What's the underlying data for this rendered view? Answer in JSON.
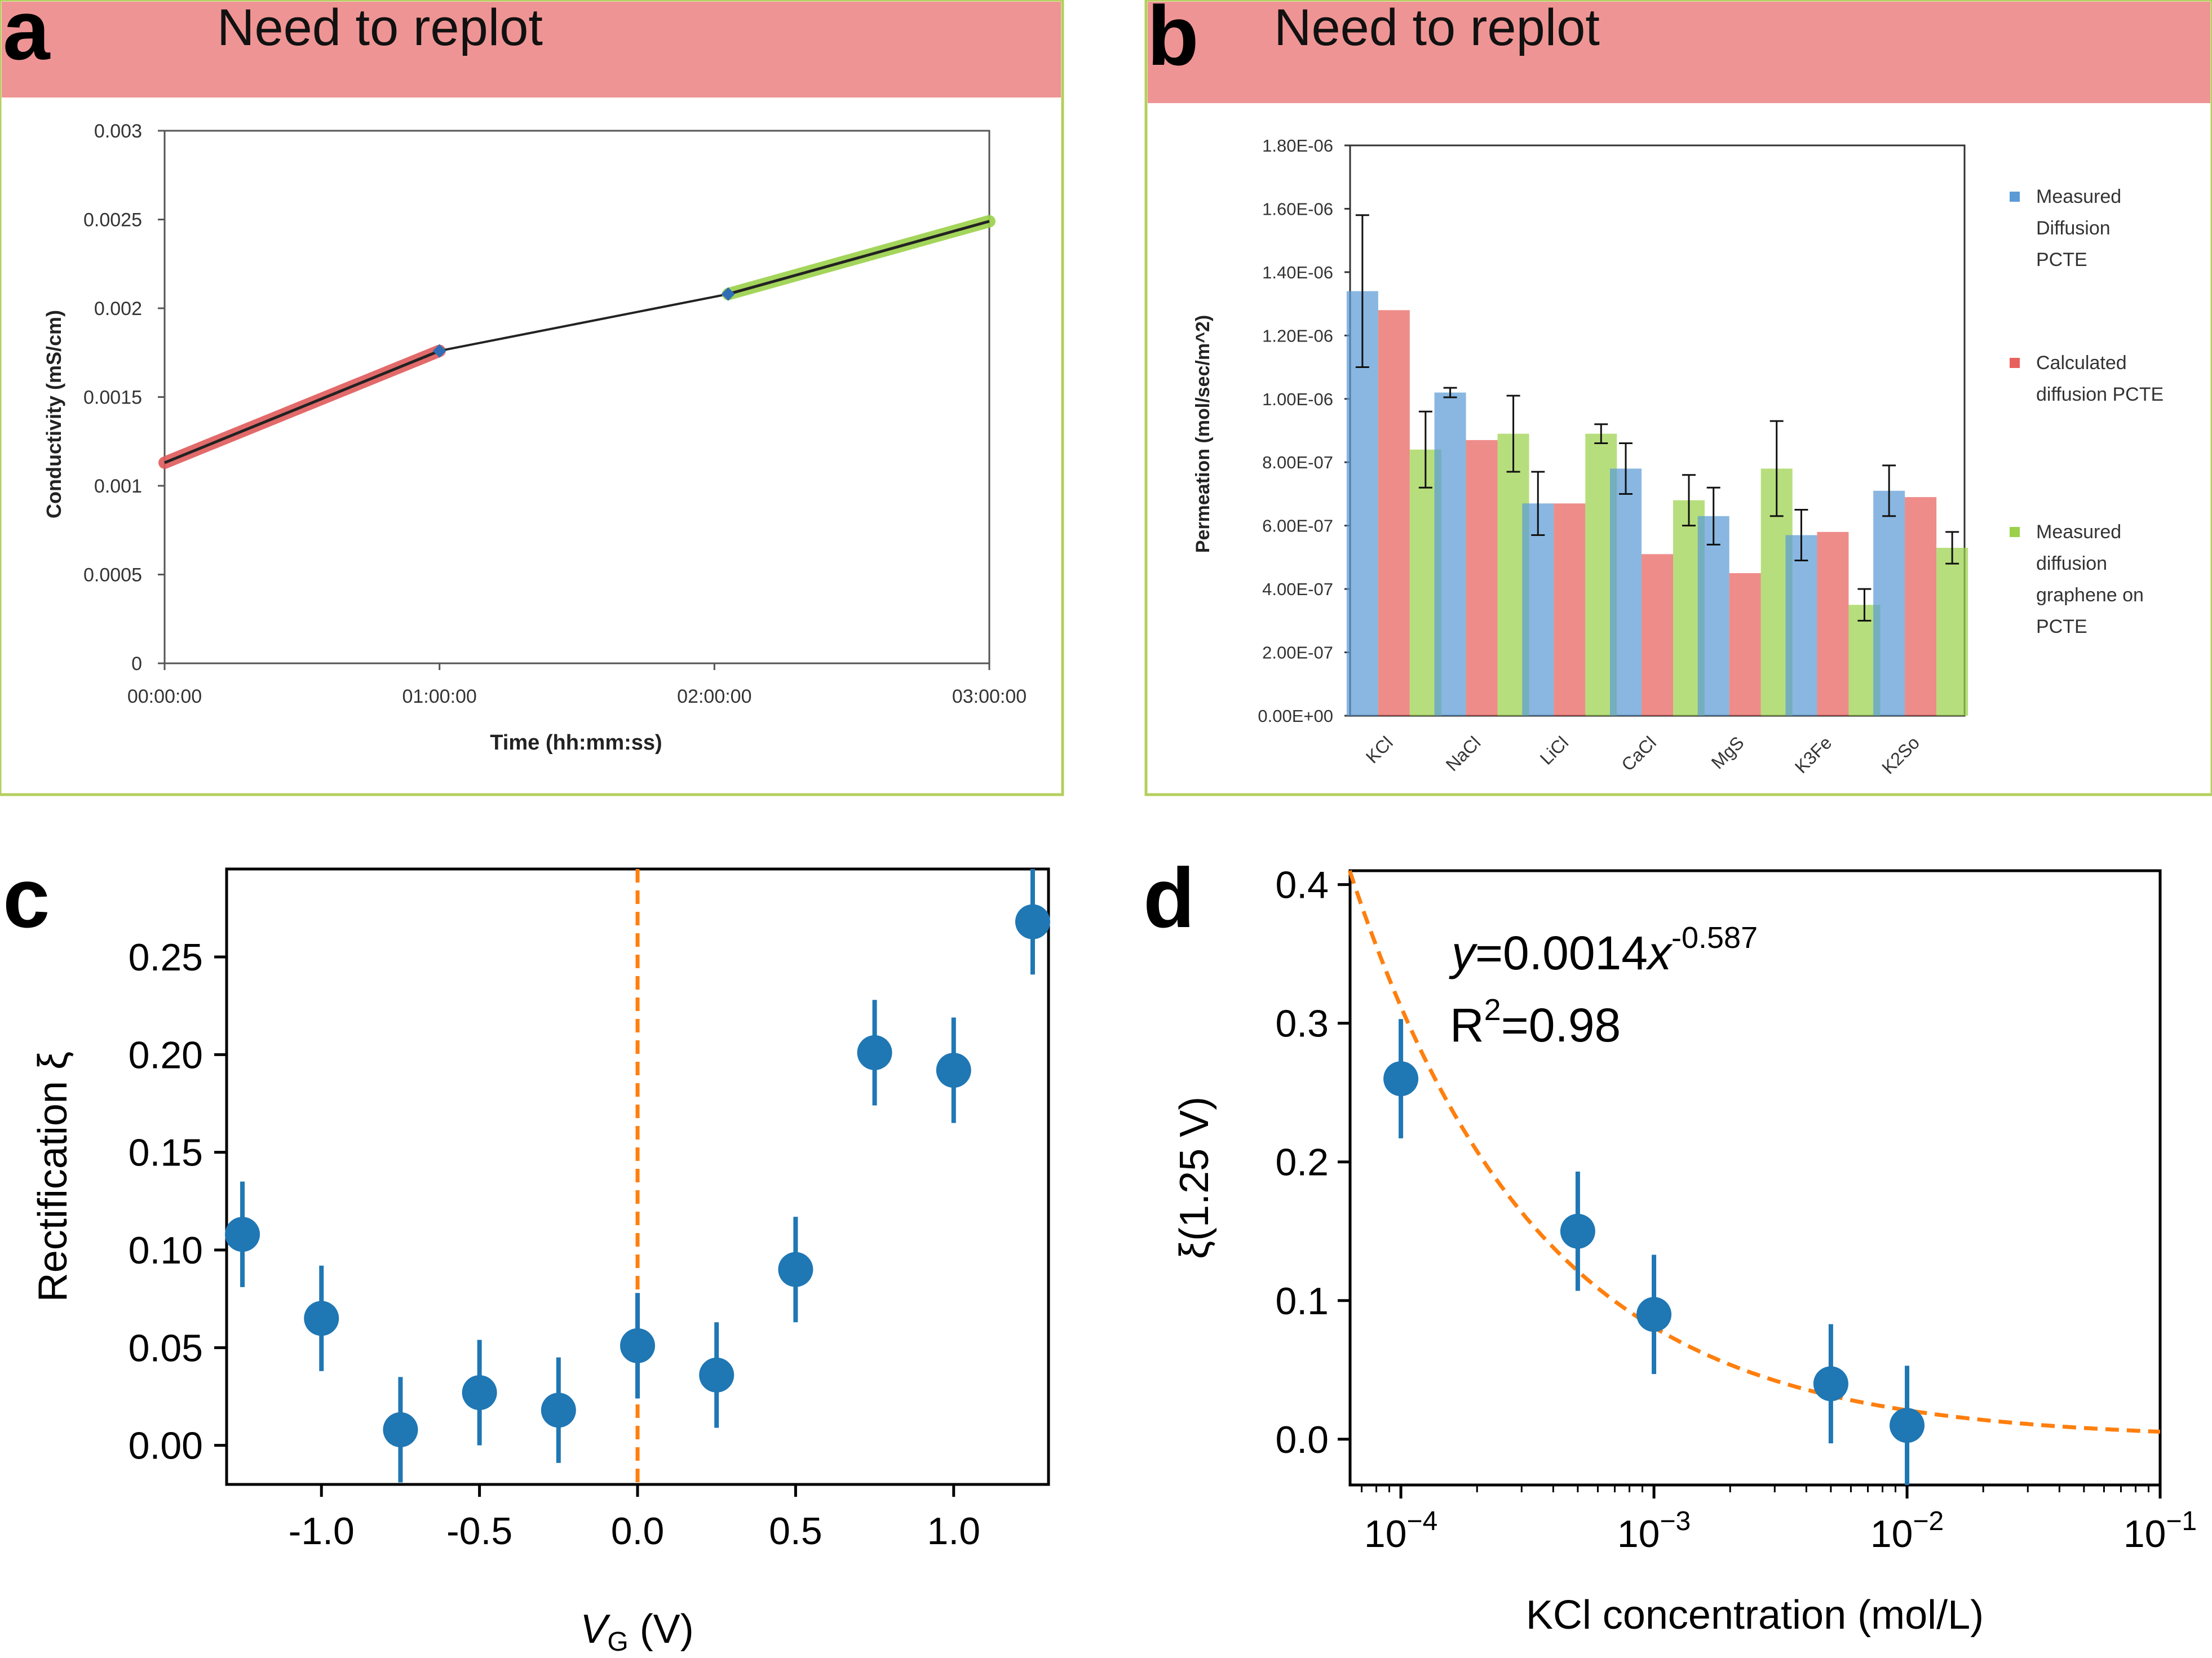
{
  "panels": {
    "a": {
      "letter": "a",
      "banner": "Need to replot",
      "chart_data": {
        "type": "line",
        "ylabel": "Conductivity (mS/cm)",
        "xlabel": "Time (hh:mm:ss)",
        "ylim": [
          0,
          0.003
        ],
        "yticks": [
          "0",
          "0.0005",
          "0.001",
          "0.0015",
          "0.002",
          "0.0025",
          "0.003"
        ],
        "xlim": [
          0,
          3
        ],
        "xticks": [
          "00:00:00",
          "01:00:00",
          "02:00:00",
          "03:00:00"
        ],
        "grid": false,
        "series": [
          {
            "color": "#e05a5a",
            "x": [
              0,
              1.0
            ],
            "y": [
              0.00113,
              0.00176
            ]
          },
          {
            "color": "#222222",
            "x": [
              1.0,
              2.05
            ],
            "y": [
              0.00176,
              0.00208
            ]
          },
          {
            "color": "#9bd14a",
            "x": [
              2.05,
              3.0
            ],
            "y": [
              0.00208,
              0.00249
            ]
          }
        ],
        "markers": [
          {
            "x": 1.0,
            "y": 0.00176
          },
          {
            "x": 2.05,
            "y": 0.00208
          }
        ]
      }
    },
    "b": {
      "letter": "b",
      "banner": "Need to replot",
      "chart_data": {
        "type": "bar",
        "ylabel": "Permeation (mol/sec/m^2)",
        "ylim": [
          0,
          1.8e-06
        ],
        "yticks": [
          "0.00E+00",
          "2.00E-07",
          "4.00E-07",
          "6.00E-07",
          "8.00E-07",
          "1.00E-06",
          "1.20E-06",
          "1.40E-06",
          "1.60E-06",
          "1.80E-06"
        ],
        "categories": [
          "KCl",
          "NaCl",
          "LiCl",
          "CaCl",
          "MgS",
          "K3Fe",
          "K2So"
        ],
        "legend_position": "right",
        "series": [
          {
            "name": "Measured Diffusion PCTE",
            "legend_lines": [
              "Measured",
              "Diffusion",
              "PCTE"
            ],
            "color": "#5b9bd5",
            "values": [
              1.34e-06,
              1.02e-06,
              6.7e-07,
              7.8e-07,
              6.3e-07,
              5.7e-07,
              7.1e-07
            ],
            "errors": [
              2.4e-07,
              1.5e-08,
              1e-07,
              8e-08,
              9e-08,
              8e-08,
              8e-08
            ]
          },
          {
            "name": "Calculated diffusion PCTE",
            "legend_lines": [
              "Calculated",
              "diffusion PCTE"
            ],
            "color": "#e8605c",
            "values": [
              1.28e-06,
              8.7e-07,
              6.7e-07,
              5.1e-07,
              4.5e-07,
              5.8e-07,
              6.9e-07
            ]
          },
          {
            "name": "Measured diffusion graphene on PCTE",
            "legend_lines": [
              "Measured",
              "diffusion",
              "graphene on",
              "PCTE"
            ],
            "color": "#9bd14a",
            "values": [
              8.4e-07,
              8.9e-07,
              8.9e-07,
              6.8e-07,
              7.8e-07,
              3.5e-07,
              5.3e-07
            ],
            "errors": [
              1.2e-07,
              1.2e-07,
              3e-08,
              8e-08,
              1.5e-07,
              5e-08,
              5e-08
            ]
          }
        ]
      }
    },
    "c": {
      "letter": "c",
      "chart_data": {
        "type": "scatter",
        "ylabel": "Rectification ξ",
        "xlabel_main": "V",
        "xlabel_sub": "G",
        "xlabel_unit": " (V)",
        "xlim": [
          -1.3,
          1.3
        ],
        "ylim": [
          -0.02,
          0.295
        ],
        "xticks": [
          -1.0,
          -0.5,
          0.0,
          0.5,
          1.0
        ],
        "xtick_labels": [
          "-1.0",
          "-0.5",
          "0.0",
          "0.5",
          "1.0"
        ],
        "yticks": [
          0.0,
          0.05,
          0.1,
          0.15,
          0.2,
          0.25
        ],
        "ytick_labels": [
          "0.00",
          "0.05",
          "0.10",
          "0.15",
          "0.20",
          "0.25"
        ],
        "vline_x": 0.0,
        "point_color": "#1f77b4",
        "line_color": "#ff7f0e",
        "points": [
          {
            "x": -1.25,
            "y": 0.108,
            "err": 0.027
          },
          {
            "x": -1.0,
            "y": 0.065,
            "err": 0.027
          },
          {
            "x": -0.75,
            "y": 0.008,
            "err": 0.027
          },
          {
            "x": -0.5,
            "y": 0.027,
            "err": 0.027
          },
          {
            "x": -0.25,
            "y": 0.018,
            "err": 0.027
          },
          {
            "x": 0.0,
            "y": 0.051,
            "err": 0.027
          },
          {
            "x": 0.25,
            "y": 0.036,
            "err": 0.027
          },
          {
            "x": 0.5,
            "y": 0.09,
            "err": 0.027
          },
          {
            "x": 0.75,
            "y": 0.201,
            "err": 0.027
          },
          {
            "x": 1.0,
            "y": 0.192,
            "err": 0.027
          },
          {
            "x": 1.25,
            "y": 0.268,
            "err": 0.027
          }
        ]
      }
    },
    "d": {
      "letter": "d",
      "chart_data": {
        "type": "scatter",
        "x_scale": "log",
        "ylabel": "ξ(1.25 V)",
        "xlabel": "KCl concentration (mol/L)",
        "xlim": [
          6.3e-05,
          0.1
        ],
        "ylim": [
          -0.033,
          0.41
        ],
        "xtick_values": [
          0.0001,
          0.001,
          0.01,
          0.1
        ],
        "xtick_labels": [
          {
            "base": "10",
            "exp": "−4"
          },
          {
            "base": "10",
            "exp": "−3"
          },
          {
            "base": "10",
            "exp": "−2"
          },
          {
            "base": "10",
            "exp": "−1"
          }
        ],
        "yticks": [
          0.0,
          0.1,
          0.2,
          0.3,
          0.4
        ],
        "ytick_labels": [
          "0.0",
          "0.1",
          "0.2",
          "0.3",
          "0.4"
        ],
        "fit": {
          "coefficient": 0.0014,
          "exponent": -0.587
        },
        "annotation": {
          "eq_y": "y",
          "eq_mid": "=0.0014",
          "eq_x": "x",
          "eq_exp": "-0.587",
          "r_base": "R",
          "r_exp": "2",
          "r_val": "=0.98"
        },
        "point_color": "#1f77b4",
        "line_color": "#ff7f0e",
        "points": [
          {
            "x": 0.0001,
            "y": 0.26,
            "err": 0.043
          },
          {
            "x": 0.0005,
            "y": 0.15,
            "err": 0.043
          },
          {
            "x": 0.001,
            "y": 0.09,
            "err": 0.043
          },
          {
            "x": 0.005,
            "y": 0.04,
            "err": 0.043
          },
          {
            "x": 0.01,
            "y": 0.01,
            "err": 0.043
          }
        ]
      }
    }
  }
}
